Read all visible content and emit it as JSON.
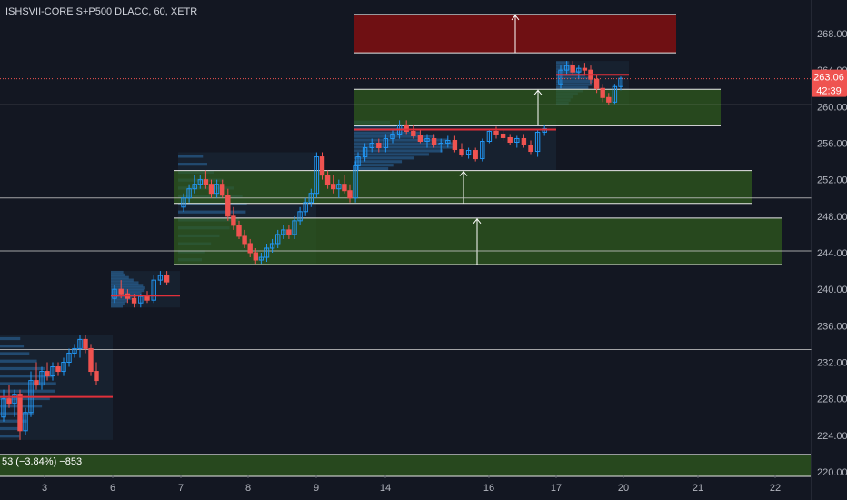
{
  "header": {
    "title": "ISHSVII-CORE S+P500 DLACC, 60, XETR"
  },
  "price_tags": {
    "last_price": "263.06",
    "countdown": "42:39",
    "colors": {
      "tag_bg": "#ef5350",
      "text": "#ffffff"
    }
  },
  "bottom_note": "53 (−3.84%) −853",
  "colors": {
    "background": "#131722",
    "axis_text": "#b2b5be",
    "up": "#2196f3",
    "down": "#ef5350",
    "zone_green": "#2f5a1e",
    "zone_red": "#7a0f12",
    "hline": "#c8c8c8",
    "poc": "#e0303a"
  },
  "chart_data": {
    "type": "candlestick",
    "title": "ISHSVII-CORE S+P500 DLACC, 60, XETR",
    "ylim": [
      219.5,
      271
    ],
    "y_ticks": [
      220,
      224,
      228,
      232,
      236,
      240,
      244,
      248,
      252,
      256,
      260,
      264,
      268
    ],
    "x_ticks": [
      "3",
      "6",
      "7",
      "8",
      "9",
      "14",
      "16",
      "17",
      "20",
      "21",
      "22"
    ],
    "last_price": 263.06,
    "horizontal_lines": [
      260.2,
      250.0,
      244.2,
      233.4
    ],
    "zones": [
      {
        "color": "red",
        "top": 270.1,
        "bottom": 265.9,
        "x0": "16-start",
        "x1": "21",
        "arrow": true
      },
      {
        "color": "green",
        "top": 261.9,
        "bottom": 257.9,
        "x0": "14-start",
        "x1": "21",
        "arrow": true
      },
      {
        "color": "green",
        "top": 253.0,
        "bottom": 249.4,
        "x0": "7",
        "x1": "21",
        "arrow": true
      },
      {
        "color": "green",
        "top": 247.8,
        "bottom": 242.7,
        "x0": "7",
        "x1": "22",
        "arrow": true
      },
      {
        "color": "green",
        "top": 221.9,
        "bottom": 219.5,
        "x0": "start",
        "x1": "end",
        "arrow": false
      }
    ],
    "sessions": [
      {
        "label": "3–6",
        "poc": 228.2,
        "candles": [
          [
            226,
            229,
            225.5,
            228
          ],
          [
            228,
            229.5,
            227,
            227.5
          ],
          [
            227.5,
            229,
            226,
            228.5
          ],
          [
            228.5,
            229,
            223.5,
            224.5
          ],
          [
            224.5,
            227,
            224,
            226.5
          ],
          [
            226.5,
            231,
            226,
            230
          ],
          [
            230,
            232,
            229,
            229.5
          ],
          [
            229.5,
            231.5,
            229,
            231
          ],
          [
            231,
            232,
            230,
            230.5
          ],
          [
            230.5,
            232,
            230,
            231.5
          ],
          [
            231.5,
            232,
            230.5,
            231
          ],
          [
            231,
            232.5,
            230.5,
            232
          ],
          [
            232,
            233.5,
            231.5,
            233
          ],
          [
            233,
            234,
            232.5,
            233.5
          ],
          [
            233.5,
            235,
            232.5,
            234.5
          ],
          [
            234.5,
            235,
            233,
            233.5
          ],
          [
            233.5,
            234,
            230.5,
            231
          ],
          [
            231,
            232,
            229.5,
            230
          ]
        ]
      },
      {
        "label": "6",
        "poc": 239.3,
        "candles": [
          [
            239,
            240.5,
            238.5,
            240
          ],
          [
            240,
            241,
            239,
            239.5
          ],
          [
            239.5,
            240,
            238.5,
            239
          ],
          [
            239,
            239.5,
            238,
            238.5
          ],
          [
            238.5,
            239.5,
            238,
            239.2
          ],
          [
            239.2,
            239.8,
            238.5,
            238.8
          ],
          [
            238.8,
            241.5,
            238.5,
            241
          ],
          [
            241,
            242,
            240.5,
            241.5
          ],
          [
            241.5,
            242,
            240.5,
            240.8
          ]
        ]
      },
      {
        "label": "7–9",
        "poc": null,
        "candles": [
          [
            249,
            250.5,
            248.5,
            250
          ],
          [
            250,
            251.5,
            249.5,
            251
          ],
          [
            251,
            252.5,
            250.5,
            251.5
          ],
          [
            251.5,
            252.5,
            251,
            252
          ],
          [
            252,
            253,
            251,
            251.5
          ],
          [
            251.5,
            252,
            250,
            250.5
          ],
          [
            250.5,
            252,
            250,
            251.5
          ],
          [
            251.5,
            252,
            250,
            250.3
          ],
          [
            250.3,
            251,
            247.5,
            248
          ],
          [
            248,
            249,
            246.5,
            247
          ],
          [
            247,
            247.5,
            245.5,
            245.8
          ],
          [
            245.8,
            246.5,
            244.5,
            245
          ],
          [
            245,
            245.5,
            243.5,
            244
          ],
          [
            244,
            244.5,
            242.8,
            243.2
          ],
          [
            243.2,
            244,
            242.8,
            243.5
          ],
          [
            243.5,
            245,
            243,
            244.5
          ],
          [
            244.5,
            245.5,
            244,
            245
          ],
          [
            245,
            246.5,
            244.5,
            246
          ],
          [
            246,
            247,
            245.5,
            246.5
          ],
          [
            246.5,
            247,
            245.5,
            246
          ],
          [
            246,
            248,
            245.5,
            247.5
          ],
          [
            247.5,
            249,
            247,
            248.5
          ],
          [
            248.5,
            250,
            248,
            249.5
          ],
          [
            249.5,
            251,
            249,
            250.5
          ],
          [
            250.5,
            255,
            250,
            254.5
          ],
          [
            254.5,
            255,
            252,
            252.5
          ],
          [
            252.5,
            253,
            251,
            251.5
          ],
          [
            251.5,
            252.5,
            250.5,
            251
          ],
          [
            251,
            252,
            250,
            251.5
          ],
          [
            251.5,
            252.5,
            250.5,
            250.8
          ],
          [
            250.8,
            251.5,
            249.5,
            250
          ],
          [
            250,
            254,
            249.5,
            253.5
          ]
        ]
      },
      {
        "label": "14–16",
        "poc": 257.5,
        "candles": [
          [
            253.5,
            255,
            253,
            254.5
          ],
          [
            254.5,
            256,
            254,
            255.5
          ],
          [
            255.5,
            256.5,
            255,
            256
          ],
          [
            256,
            256.5,
            255,
            255.5
          ],
          [
            255.5,
            257,
            255,
            256.5
          ],
          [
            256.5,
            257.5,
            256,
            257
          ],
          [
            257,
            258.5,
            256.5,
            258
          ],
          [
            258,
            258.5,
            257,
            257.3
          ],
          [
            257.3,
            258,
            256.5,
            256.8
          ],
          [
            256.8,
            257.5,
            256,
            256.2
          ],
          [
            256.2,
            257,
            255.5,
            256.5
          ],
          [
            256.5,
            257,
            255.5,
            255.8
          ],
          [
            255.8,
            256.5,
            255,
            256
          ],
          [
            256,
            256.8,
            255.5,
            256.3
          ],
          [
            256.3,
            256.8,
            255,
            255.3
          ],
          [
            255.3,
            256,
            254.5,
            254.8
          ],
          [
            254.8,
            255.5,
            254.3,
            255.2
          ],
          [
            255.2,
            255.5,
            254,
            254.3
          ],
          [
            254.3,
            256.5,
            254,
            256.2
          ],
          [
            256.2,
            257.5,
            256,
            257.3
          ],
          [
            257.3,
            257.8,
            256.5,
            257
          ],
          [
            257,
            257.5,
            256.3,
            256.6
          ],
          [
            256.6,
            257,
            255.8,
            256.1
          ],
          [
            256.1,
            256.8,
            255.5,
            256.5
          ],
          [
            256.5,
            257,
            255.5,
            255.8
          ],
          [
            255.8,
            256.3,
            254.8,
            255.1
          ],
          [
            255.1,
            257.5,
            254.5,
            257.2
          ],
          [
            257.2,
            258,
            256.8,
            257.6
          ]
        ]
      },
      {
        "label": "17–20",
        "poc": 263.5,
        "candles": [
          [
            262.5,
            264.5,
            262,
            264
          ],
          [
            264,
            265,
            263.5,
            264.5
          ],
          [
            264.5,
            265,
            263.5,
            263.8
          ],
          [
            263.8,
            264.5,
            263,
            264.2
          ],
          [
            264.2,
            264.8,
            263.5,
            264
          ],
          [
            264,
            264.5,
            262.5,
            263
          ],
          [
            263,
            263.5,
            261.5,
            262
          ],
          [
            262,
            262.5,
            260.5,
            261
          ],
          [
            261,
            261.5,
            260.2,
            260.5
          ],
          [
            260.5,
            262.5,
            260.3,
            262.2
          ],
          [
            262.2,
            263.3,
            261.8,
            263.1
          ]
        ]
      }
    ]
  }
}
